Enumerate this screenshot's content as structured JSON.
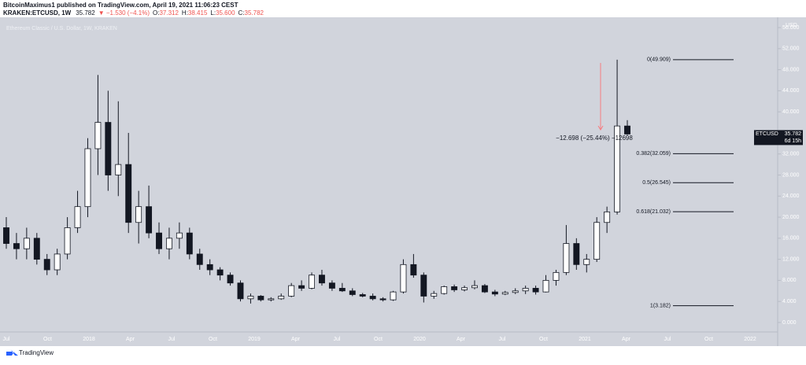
{
  "header": {
    "line1": "BitcoinMaximus1 published on TradingView.com, April 19, 2021 11:06:23 CEST",
    "symbol": "KRAKEN:ETCUSD, 1W",
    "last": "35.782",
    "change": "▼ −1.530 (−4.1%)",
    "ohlc": [
      {
        "k": "O:",
        "v": "37.312"
      },
      {
        "k": "H:",
        "v": "38.415"
      },
      {
        "k": "L:",
        "v": "35.600"
      },
      {
        "k": "C:",
        "v": "35.782"
      }
    ]
  },
  "footer": "TradingView",
  "chart_data": {
    "type": "candlestick",
    "title": "Ethereum Classic / U.S. Dollar, 1W, KRAKEN",
    "y_axis_label": "USD",
    "up_color": "#ffffff",
    "down_color": "#131722",
    "x_axis_labels": [
      "Jul",
      "Oct",
      "2018",
      "Apr",
      "Jul",
      "Oct",
      "2019",
      "Apr",
      "Jul",
      "Oct",
      "2020",
      "Apr",
      "Jul",
      "Oct",
      "2021",
      "Apr",
      "Jul",
      "Oct",
      "2022"
    ],
    "ylim": [
      -1.5,
      57.5
    ],
    "yticks": [
      {
        "value": 0,
        "label": "0.000"
      },
      {
        "value": 4,
        "label": "4.000"
      },
      {
        "value": 8,
        "label": "8.000"
      },
      {
        "value": 12,
        "label": "12.000"
      },
      {
        "value": 16,
        "label": "16.000"
      },
      {
        "value": 20,
        "label": "20.000"
      },
      {
        "value": 24,
        "label": "24.000"
      },
      {
        "value": 28,
        "label": "28.000"
      },
      {
        "value": 32,
        "label": "32.000"
      },
      {
        "value": 36,
        "label": "36.000"
      },
      {
        "value": 40,
        "label": "40.000"
      },
      {
        "value": 44,
        "label": "44.000"
      },
      {
        "value": 48,
        "label": "48.000"
      },
      {
        "value": 52,
        "label": "52.000"
      },
      {
        "value": 56,
        "label": "56.000"
      }
    ],
    "candles": [
      [
        18,
        20,
        14,
        15
      ],
      [
        15,
        17,
        12,
        14
      ],
      [
        14,
        18,
        12,
        16
      ],
      [
        16,
        17,
        11,
        12
      ],
      [
        12,
        13,
        9,
        10
      ],
      [
        10,
        14,
        9,
        13
      ],
      [
        13,
        20,
        12,
        18
      ],
      [
        18,
        25,
        17,
        22
      ],
      [
        22,
        35,
        20,
        33
      ],
      [
        33,
        47,
        28,
        38
      ],
      [
        38,
        44,
        25,
        28
      ],
      [
        28,
        42,
        24,
        30
      ],
      [
        30,
        36,
        17,
        19
      ],
      [
        19,
        25,
        15,
        22
      ],
      [
        22,
        26,
        16,
        17
      ],
      [
        17,
        19,
        13,
        14
      ],
      [
        14,
        18,
        12,
        16
      ],
      [
        16,
        19,
        14,
        17
      ],
      [
        17,
        18,
        12,
        13
      ],
      [
        13,
        14,
        10,
        11
      ],
      [
        11,
        12,
        9,
        10
      ],
      [
        10,
        10.5,
        8,
        9
      ],
      [
        9,
        9.5,
        7,
        7.5
      ],
      [
        7.5,
        8,
        4,
        4.5
      ],
      [
        4.5,
        5.5,
        3.6,
        5
      ],
      [
        5,
        5.2,
        4,
        4.3
      ],
      [
        4.3,
        4.8,
        4,
        4.5
      ],
      [
        4.5,
        5.5,
        4.3,
        5
      ],
      [
        5,
        7.5,
        4.8,
        7
      ],
      [
        7,
        8,
        6,
        6.5
      ],
      [
        6.5,
        9.5,
        6.3,
        9
      ],
      [
        9,
        10,
        7,
        7.5
      ],
      [
        7.5,
        8,
        6,
        6.5
      ],
      [
        6.5,
        7.5,
        5.8,
        6
      ],
      [
        6,
        6.5,
        5,
        5.3
      ],
      [
        5.3,
        5.6,
        4.8,
        5
      ],
      [
        5,
        5.5,
        4.2,
        4.5
      ],
      [
        4.5,
        4.8,
        4,
        4.3
      ],
      [
        4.3,
        6,
        4.1,
        5.8
      ],
      [
        5.8,
        12,
        5.5,
        11
      ],
      [
        11,
        13,
        8.5,
        9
      ],
      [
        9,
        9.5,
        3.8,
        5
      ],
      [
        5,
        6,
        4.5,
        5.5
      ],
      [
        5.5,
        7,
        5.3,
        6.8
      ],
      [
        6.8,
        7.2,
        5.8,
        6.2
      ],
      [
        6.2,
        7,
        5.9,
        6.6
      ],
      [
        6.6,
        8,
        6.3,
        7
      ],
      [
        7,
        7.3,
        5.6,
        5.8
      ],
      [
        5.8,
        6.2,
        5,
        5.4
      ],
      [
        5.4,
        6,
        5.2,
        5.7
      ],
      [
        5.7,
        6.5,
        5.4,
        6
      ],
      [
        6,
        7,
        5.4,
        6.5
      ],
      [
        6.5,
        7,
        5.3,
        5.8
      ],
      [
        5.8,
        9,
        5.7,
        8
      ],
      [
        8,
        10,
        7,
        9.5
      ],
      [
        9.5,
        18.5,
        9,
        15
      ],
      [
        15,
        16,
        10,
        11
      ],
      [
        11,
        13,
        9.5,
        12
      ],
      [
        12,
        20,
        11.5,
        19
      ],
      [
        19,
        22,
        17,
        21
      ],
      [
        21,
        49.909,
        20.5,
        37.312
      ],
      [
        37.312,
        38.415,
        35.6,
        35.782
      ]
    ],
    "fib_levels": [
      {
        "label": "0(49.909)",
        "value": 49.909
      },
      {
        "label": "0.382(32.059)",
        "value": 32.059
      },
      {
        "label": "0.5(26.545)",
        "value": 26.545
      },
      {
        "label": "0.618(21.032)",
        "value": 21.032
      },
      {
        "label": "1(3.182)",
        "value": 3.182
      }
    ],
    "measure_label": "−12.698 (−25.44%) −12698",
    "price_tag": {
      "symbol": "ETCUSD",
      "price": "35.782",
      "countdown": "6d 15h"
    }
  }
}
